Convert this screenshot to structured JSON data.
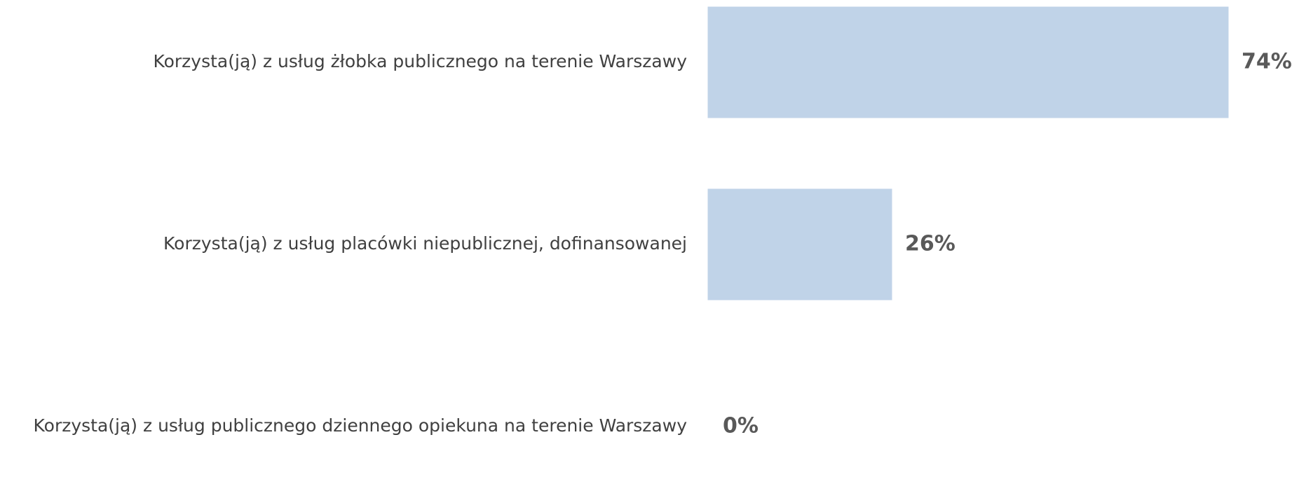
{
  "chart_data": {
    "type": "bar",
    "orientation": "horizontal",
    "categories": [
      "Korzysta(ją) z usług żłobka publicznego na terenie Warszawy",
      "Korzysta(ją) z usług placówki niepublicznej, dofinansowanej",
      "Korzysta(ją) z usług publicznego dziennego opiekuna na terenie Warszawy"
    ],
    "values": [
      74,
      26,
      0
    ],
    "value_labels": [
      "74%",
      "26%",
      "0%"
    ],
    "color": "#c0d3e8"
  }
}
